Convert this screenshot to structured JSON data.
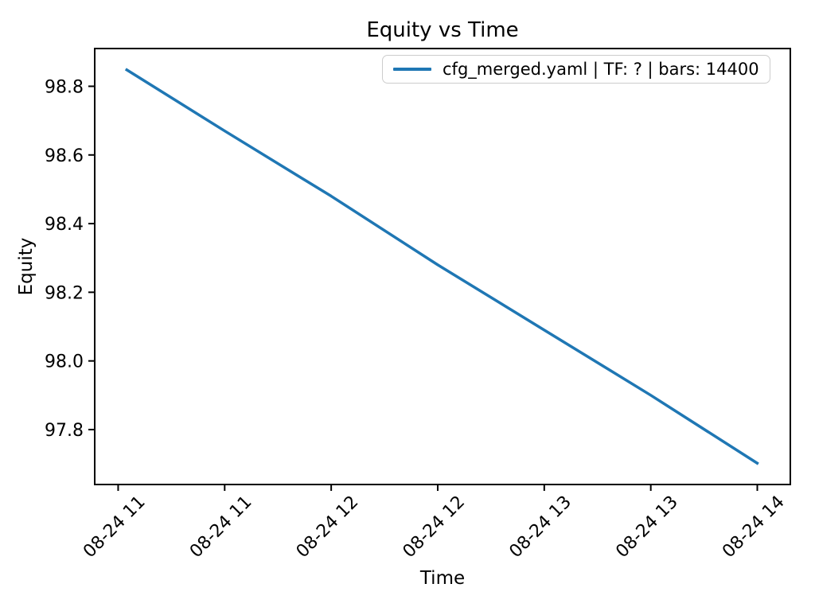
{
  "chart_data": {
    "type": "line",
    "title": "Equity vs Time",
    "xlabel": "Time",
    "ylabel": "Equity",
    "x_tick_labels": [
      "08-24 11",
      "08-24 11",
      "08-24 12",
      "08-24 12",
      "08-24 13",
      "08-24 13",
      "08-24 14"
    ],
    "x_tick_positions": [
      0,
      1,
      2,
      3,
      4,
      5,
      6
    ],
    "x_tick_rotation": 45,
    "y_ticks": [
      97.8,
      98.0,
      98.2,
      98.4,
      98.6,
      98.8
    ],
    "xlim": [
      -0.22,
      6.31
    ],
    "ylim": [
      97.64,
      98.91
    ],
    "grid": false,
    "legend_position": "upper right",
    "series": [
      {
        "name": "cfg_merged.yaml | TF: ? | bars: 14400",
        "color": "#1f77b4",
        "x": [
          0.07,
          1,
          2,
          3,
          4,
          5,
          6.01
        ],
        "y": [
          98.85,
          98.67,
          98.48,
          98.28,
          98.09,
          97.9,
          97.7
        ]
      }
    ]
  },
  "colors": {
    "spine": "#000000",
    "tick_text": "#000000",
    "legend_border": "#cccccc",
    "background": "#ffffff"
  }
}
